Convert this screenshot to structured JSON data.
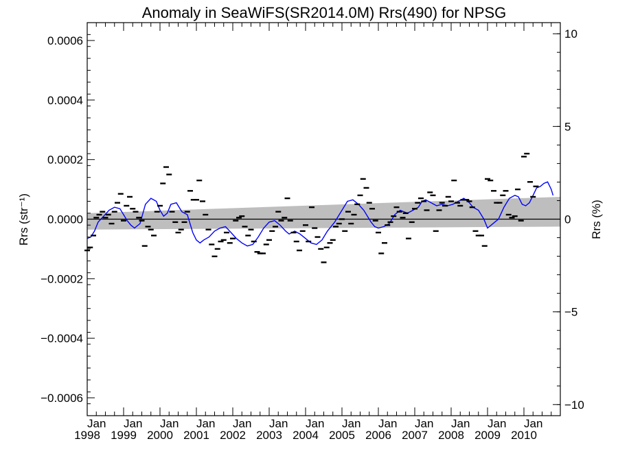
{
  "chart_data": {
    "type": "scatter",
    "title": "Anomaly in SeaWiFS(SR2014.0M) Rrs(490) for NPSG",
    "ylabel_left": "Rrs (str⁻¹)",
    "ylabel_right": "Rrs (%)",
    "xlim": [
      1998.0,
      2011.0
    ],
    "ylim": [
      -0.00066,
      0.00066
    ],
    "ylim_right": [
      -10.6,
      10.6
    ],
    "x_ticks": [
      {
        "value": 1998,
        "month": "Jan",
        "year": "1998"
      },
      {
        "value": 1999,
        "month": "Jan",
        "year": "1999"
      },
      {
        "value": 2000,
        "month": "Jan",
        "year": "2000"
      },
      {
        "value": 2001,
        "month": "Jan",
        "year": "2001"
      },
      {
        "value": 2002,
        "month": "Jan",
        "year": "2002"
      },
      {
        "value": 2003,
        "month": "Jan",
        "year": "2003"
      },
      {
        "value": 2004,
        "month": "Jan",
        "year": "2004"
      },
      {
        "value": 2005,
        "month": "Jan",
        "year": "2005"
      },
      {
        "value": 2006,
        "month": "Jan",
        "year": "2006"
      },
      {
        "value": 2007,
        "month": "Jan",
        "year": "2007"
      },
      {
        "value": 2008,
        "month": "Jan",
        "year": "2008"
      },
      {
        "value": 2009,
        "month": "Jan",
        "year": "2009"
      },
      {
        "value": 2010,
        "month": "Jan",
        "year": "2010"
      }
    ],
    "y_ticks_left": [
      {
        "value": 0.0006,
        "label": "0.0006"
      },
      {
        "value": 0.0004,
        "label": "0.0004"
      },
      {
        "value": 0.0002,
        "label": "0.0002"
      },
      {
        "value": 0.0,
        "label": "0.0000"
      },
      {
        "value": -0.0002,
        "label": "−0.0002"
      },
      {
        "value": -0.0004,
        "label": "−0.0004"
      },
      {
        "value": -0.0006,
        "label": "−0.0006"
      }
    ],
    "y_ticks_right": [
      {
        "value": 10,
        "label": "10"
      },
      {
        "value": 5,
        "label": "5"
      },
      {
        "value": 0,
        "label": "0"
      },
      {
        "value": -5,
        "label": "−5"
      },
      {
        "value": -10,
        "label": "−10"
      }
    ],
    "trend_band": {
      "x": [
        1998.0,
        2011.0
      ],
      "upper": [
        2e-05,
        7.5e-05
      ],
      "lower": [
        -3.5e-05,
        -2.5e-05
      ]
    },
    "zero_line": 0.0,
    "monthly_anomalies": [
      {
        "x": 1998.0,
        "y": -0.000105
      },
      {
        "x": 1998.08,
        "y": -9.5e-05
      },
      {
        "x": 1998.17,
        "y": -5.5e-05
      },
      {
        "x": 1998.25,
        "y": 5e-06
      },
      {
        "x": 1998.33,
        "y": 1.5e-05
      },
      {
        "x": 1998.42,
        "y": 2.5e-05
      },
      {
        "x": 1998.5,
        "y": 5e-06
      },
      {
        "x": 1998.58,
        "y": 1.5e-05
      },
      {
        "x": 1998.67,
        "y": -1.5e-05
      },
      {
        "x": 1998.75,
        "y": 2.5e-05
      },
      {
        "x": 1998.83,
        "y": 5.5e-05
      },
      {
        "x": 1998.92,
        "y": 8.5e-05
      },
      {
        "x": 1999.0,
        "y": -5e-06
      },
      {
        "x": 1999.08,
        "y": 4.5e-05
      },
      {
        "x": 1999.17,
        "y": 7.5e-05
      },
      {
        "x": 1999.25,
        "y": 3.5e-05
      },
      {
        "x": 1999.33,
        "y": 2.5e-05
      },
      {
        "x": 1999.42,
        "y": 5e-06
      },
      {
        "x": 1999.5,
        "y": -5e-06
      },
      {
        "x": 1999.58,
        "y": -9e-05
      },
      {
        "x": 1999.67,
        "y": -2.5e-05
      },
      {
        "x": 1999.75,
        "y": -3.5e-05
      },
      {
        "x": 1999.83,
        "y": -5.5e-05
      },
      {
        "x": 1999.92,
        "y": 2.5e-05
      },
      {
        "x": 2000.0,
        "y": 4.5e-05
      },
      {
        "x": 2000.08,
        "y": 0.00012
      },
      {
        "x": 2000.17,
        "y": 0.000175
      },
      {
        "x": 2000.25,
        "y": 0.00015
      },
      {
        "x": 2000.33,
        "y": 2.5e-05
      },
      {
        "x": 2000.42,
        "y": -1e-05
      },
      {
        "x": 2000.5,
        "y": -4.5e-05
      },
      {
        "x": 2000.58,
        "y": -3.5e-05
      },
      {
        "x": 2000.67,
        "y": -1e-05
      },
      {
        "x": 2000.75,
        "y": 2.5e-05
      },
      {
        "x": 2000.83,
        "y": 9.5e-05
      },
      {
        "x": 2000.92,
        "y": 6.5e-05
      },
      {
        "x": 2001.0,
        "y": 6.5e-05
      },
      {
        "x": 2001.08,
        "y": 0.00013
      },
      {
        "x": 2001.17,
        "y": 6e-05
      },
      {
        "x": 2001.25,
        "y": 1.5e-05
      },
      {
        "x": 2001.33,
        "y": -3.5e-05
      },
      {
        "x": 2001.42,
        "y": -8.5e-05
      },
      {
        "x": 2001.5,
        "y": -0.000125
      },
      {
        "x": 2001.58,
        "y": -0.0001
      },
      {
        "x": 2001.67,
        "y": -7.5e-05
      },
      {
        "x": 2001.75,
        "y": -7e-05
      },
      {
        "x": 2001.83,
        "y": -4.5e-05
      },
      {
        "x": 2001.92,
        "y": -8e-05
      },
      {
        "x": 2002.0,
        "y": -6.5e-05
      },
      {
        "x": 2002.08,
        "y": -5e-06
      },
      {
        "x": 2002.17,
        "y": 5e-06
      },
      {
        "x": 2002.25,
        "y": 1e-05
      },
      {
        "x": 2002.33,
        "y": -2.5e-05
      },
      {
        "x": 2002.42,
        "y": -5.5e-05
      },
      {
        "x": 2002.5,
        "y": -3.5e-05
      },
      {
        "x": 2002.58,
        "y": -7.5e-05
      },
      {
        "x": 2002.67,
        "y": -0.00011
      },
      {
        "x": 2002.75,
        "y": -0.000115
      },
      {
        "x": 2002.83,
        "y": -0.000115
      },
      {
        "x": 2002.92,
        "y": -8.5e-05
      },
      {
        "x": 2003.0,
        "y": -7e-05
      },
      {
        "x": 2003.08,
        "y": -4e-05
      },
      {
        "x": 2003.17,
        "y": -2.5e-05
      },
      {
        "x": 2003.25,
        "y": 2.5e-05
      },
      {
        "x": 2003.33,
        "y": -5e-06
      },
      {
        "x": 2003.42,
        "y": 5e-06
      },
      {
        "x": 2003.5,
        "y": 7e-05
      },
      {
        "x": 2003.58,
        "y": -5e-06
      },
      {
        "x": 2003.67,
        "y": -4.5e-05
      },
      {
        "x": 2003.75,
        "y": -7.5e-05
      },
      {
        "x": 2003.83,
        "y": -0.000105
      },
      {
        "x": 2003.92,
        "y": -4e-05
      },
      {
        "x": 2004.0,
        "y": -2e-05
      },
      {
        "x": 2004.08,
        "y": -7.5e-05
      },
      {
        "x": 2004.17,
        "y": 4e-05
      },
      {
        "x": 2004.25,
        "y": -3e-05
      },
      {
        "x": 2004.33,
        "y": -6e-05
      },
      {
        "x": 2004.42,
        "y": -0.0001
      },
      {
        "x": 2004.5,
        "y": -0.000145
      },
      {
        "x": 2004.58,
        "y": -9.5e-05
      },
      {
        "x": 2004.67,
        "y": -8e-05
      },
      {
        "x": 2004.75,
        "y": -7e-05
      },
      {
        "x": 2004.83,
        "y": -2.5e-05
      },
      {
        "x": 2004.92,
        "y": -1.5e-05
      },
      {
        "x": 2005.0,
        "y": 0.0
      },
      {
        "x": 2005.08,
        "y": -4e-05
      },
      {
        "x": 2005.17,
        "y": 2.5e-05
      },
      {
        "x": 2005.25,
        "y": -1.5e-05
      },
      {
        "x": 2005.33,
        "y": 1.5e-05
      },
      {
        "x": 2005.42,
        "y": 5e-05
      },
      {
        "x": 2005.5,
        "y": 8e-05
      },
      {
        "x": 2005.58,
        "y": 0.000135
      },
      {
        "x": 2005.67,
        "y": 0.000105
      },
      {
        "x": 2005.75,
        "y": 5.5e-05
      },
      {
        "x": 2005.83,
        "y": 3.5e-05
      },
      {
        "x": 2005.92,
        "y": -5e-06
      },
      {
        "x": 2006.0,
        "y": -4.5e-05
      },
      {
        "x": 2006.08,
        "y": -0.000115
      },
      {
        "x": 2006.17,
        "y": -8e-05
      },
      {
        "x": 2006.25,
        "y": -2e-05
      },
      {
        "x": 2006.33,
        "y": -1e-05
      },
      {
        "x": 2006.42,
        "y": 1e-05
      },
      {
        "x": 2006.5,
        "y": 4e-05
      },
      {
        "x": 2006.58,
        "y": 2.5e-05
      },
      {
        "x": 2006.67,
        "y": 5e-06
      },
      {
        "x": 2006.75,
        "y": 2e-05
      },
      {
        "x": 2006.83,
        "y": -6.5e-05
      },
      {
        "x": 2006.92,
        "y": -1e-05
      },
      {
        "x": 2007.0,
        "y": 3.5e-05
      },
      {
        "x": 2007.08,
        "y": 5.5e-05
      },
      {
        "x": 2007.17,
        "y": 7e-05
      },
      {
        "x": 2007.25,
        "y": 6e-05
      },
      {
        "x": 2007.33,
        "y": 3e-05
      },
      {
        "x": 2007.42,
        "y": 9e-05
      },
      {
        "x": 2007.5,
        "y": 8e-05
      },
      {
        "x": 2007.58,
        "y": -4e-05
      },
      {
        "x": 2007.67,
        "y": 3e-05
      },
      {
        "x": 2007.75,
        "y": 5.5e-05
      },
      {
        "x": 2007.83,
        "y": 4.5e-05
      },
      {
        "x": 2007.92,
        "y": 7.5e-05
      },
      {
        "x": 2008.0,
        "y": 6e-05
      },
      {
        "x": 2008.08,
        "y": 0.00013
      },
      {
        "x": 2008.17,
        "y": 5.5e-05
      },
      {
        "x": 2008.25,
        "y": 4.5e-05
      },
      {
        "x": 2008.33,
        "y": 6.5e-05
      },
      {
        "x": 2008.42,
        "y": 6.5e-05
      },
      {
        "x": 2008.5,
        "y": 6e-05
      },
      {
        "x": 2008.58,
        "y": 4e-05
      },
      {
        "x": 2008.67,
        "y": -4e-05
      },
      {
        "x": 2008.75,
        "y": -5.5e-05
      },
      {
        "x": 2008.83,
        "y": -5.5e-05
      },
      {
        "x": 2008.92,
        "y": -9e-05
      },
      {
        "x": 2009.0,
        "y": 0.000135
      },
      {
        "x": 2009.08,
        "y": 0.00013
      },
      {
        "x": 2009.17,
        "y": 9.5e-05
      },
      {
        "x": 2009.25,
        "y": 5.5e-05
      },
      {
        "x": 2009.33,
        "y": 5.5e-05
      },
      {
        "x": 2009.42,
        "y": 8e-05
      },
      {
        "x": 2009.5,
        "y": 9.5e-05
      },
      {
        "x": 2009.58,
        "y": 1.5e-05
      },
      {
        "x": 2009.67,
        "y": 5e-06
      },
      {
        "x": 2009.75,
        "y": 1e-05
      },
      {
        "x": 2009.83,
        "y": 0.0001
      },
      {
        "x": 2009.92,
        "y": -5e-06
      },
      {
        "x": 2010.0,
        "y": 0.00021
      },
      {
        "x": 2010.08,
        "y": 0.00022
      },
      {
        "x": 2010.17,
        "y": 0.000125
      },
      {
        "x": 2010.25,
        "y": 7.5e-05
      },
      {
        "x": 2010.33,
        "y": 0.00011
      }
    ],
    "running_mean": {
      "color": "#0000ff",
      "x": [
        1998.0,
        1998.1,
        1998.2,
        1998.3,
        1998.45,
        1998.6,
        1998.75,
        1998.9,
        1999.0,
        1999.1,
        1999.2,
        1999.3,
        1999.45,
        1999.6,
        1999.75,
        1999.9,
        2000.0,
        2000.1,
        2000.2,
        2000.3,
        2000.45,
        2000.6,
        2000.75,
        2000.9,
        2001.0,
        2001.1,
        2001.2,
        2001.35,
        2001.5,
        2001.65,
        2001.8,
        2001.95,
        2002.1,
        2002.25,
        2002.4,
        2002.55,
        2002.7,
        2002.85,
        2003.0,
        2003.15,
        2003.3,
        2003.45,
        2003.55,
        2003.7,
        2003.85,
        2004.0,
        2004.15,
        2004.3,
        2004.45,
        2004.6,
        2004.8,
        2005.0,
        2005.15,
        2005.3,
        2005.45,
        2005.6,
        2005.7,
        2005.8,
        2005.9,
        2006.0,
        2006.15,
        2006.3,
        2006.45,
        2006.6,
        2006.8,
        2006.95,
        2007.1,
        2007.2,
        2007.3,
        2007.45,
        2007.6,
        2007.75,
        2007.9,
        2008.05,
        2008.2,
        2008.35,
        2008.5,
        2008.6,
        2008.75,
        2008.9,
        2009.0,
        2009.1,
        2009.2,
        2009.3,
        2009.45,
        2009.6,
        2009.75,
        2009.85,
        2009.95,
        2010.05,
        2010.15,
        2010.25,
        2010.35,
        2010.45,
        2010.55,
        2010.65,
        2010.75,
        2010.8
      ],
      "y": [
        -6.5e-05,
        -6e-05,
        -4e-05,
        -1e-05,
        1e-05,
        3e-05,
        4e-05,
        3.5e-05,
        1.5e-05,
        -5e-06,
        -2e-05,
        -3e-05,
        -1.5e-05,
        5e-05,
        7e-05,
        6e-05,
        3e-05,
        1e-05,
        2e-05,
        5e-05,
        5.5e-05,
        2.5e-05,
        1.5e-05,
        -4.5e-05,
        -7e-05,
        -8e-05,
        -7e-05,
        -6e-05,
        -4e-05,
        -3e-05,
        -2.5e-05,
        -4.5e-05,
        -6.5e-05,
        -8e-05,
        -9e-05,
        -8.5e-05,
        -6e-05,
        -3e-05,
        -1e-05,
        -5e-06,
        -2e-05,
        -4e-05,
        -5e-05,
        -4e-05,
        -5e-05,
        -6.5e-05,
        -8e-05,
        -8.5e-05,
        -7e-05,
        -4e-05,
        -1e-05,
        3e-05,
        6e-05,
        6.5e-05,
        5e-05,
        3e-05,
        1e-05,
        -1e-05,
        -2.5e-05,
        -3e-05,
        -2.5e-05,
        -1.5e-05,
        1.5e-05,
        3e-05,
        2e-05,
        3e-05,
        4e-05,
        6e-05,
        6.5e-05,
        5.5e-05,
        4.5e-05,
        5e-05,
        4.5e-05,
        5e-05,
        6e-05,
        7e-05,
        5.5e-05,
        4e-05,
        3e-05,
        0.0,
        -3e-05,
        -2e-05,
        -1e-05,
        0.0,
        4e-05,
        7e-05,
        8e-05,
        7.5e-05,
        5e-05,
        4.5e-05,
        5.5e-05,
        8e-05,
        0.000105,
        0.00011,
        0.00012,
        0.000125,
        0.0001,
        8e-05
      ]
    }
  }
}
